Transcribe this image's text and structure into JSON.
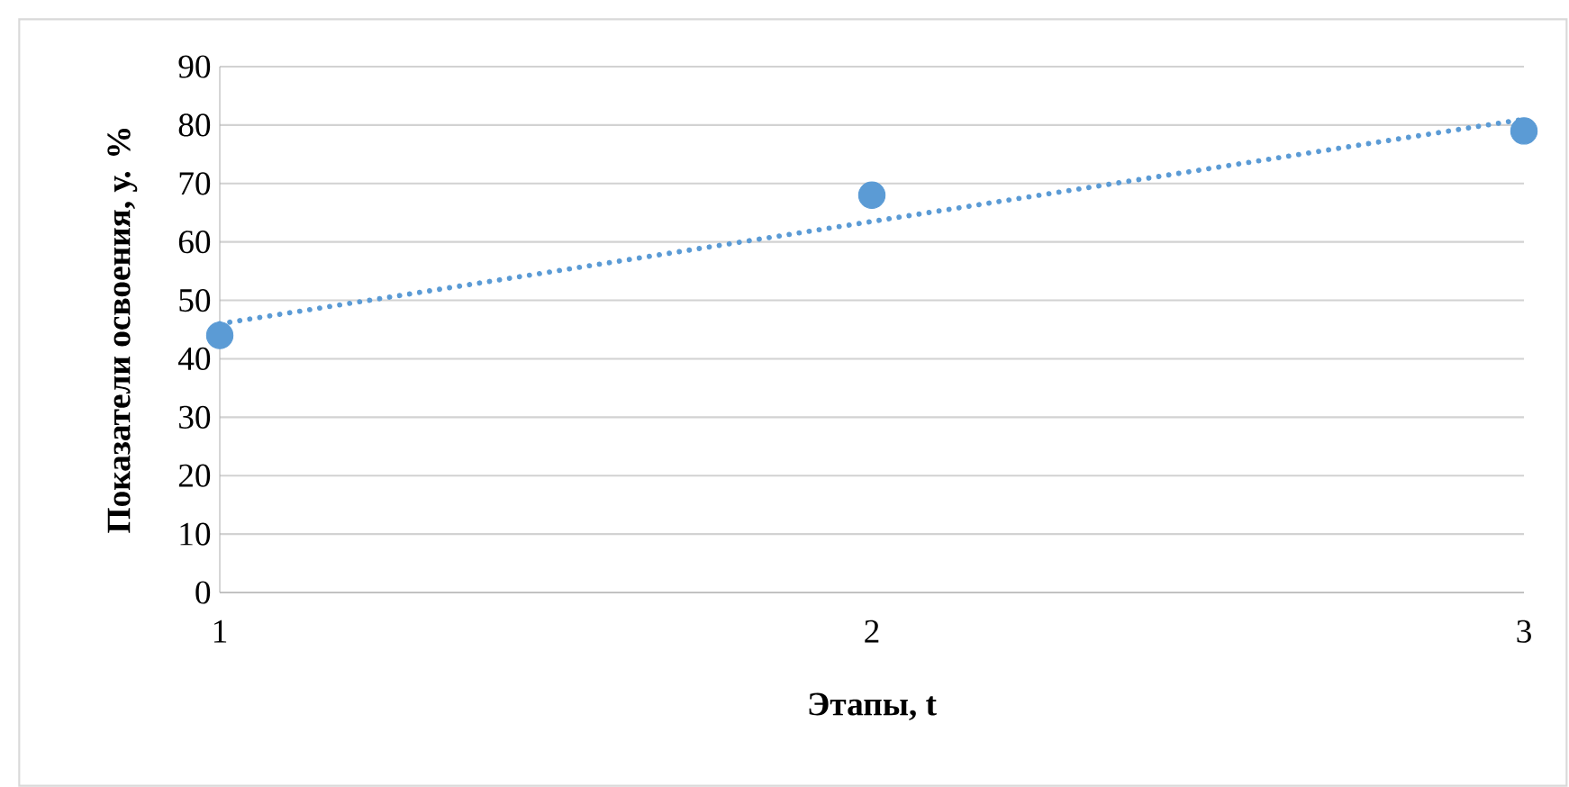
{
  "chart_data": {
    "type": "scatter",
    "xlabel": "Этапы, t",
    "ylabel": "Показатели освоения, у. %",
    "x": [
      1,
      2,
      3
    ],
    "xlim": [
      1,
      3
    ],
    "xticks": [
      1,
      2,
      3
    ],
    "ylim": [
      0,
      90
    ],
    "yticks": [
      0,
      10,
      20,
      30,
      40,
      50,
      60,
      70,
      80,
      90
    ],
    "grid": "y",
    "series": [
      {
        "color": "#5b9bd5",
        "values": [
          44,
          68,
          79
        ],
        "marker": "circle"
      },
      {
        "type": "line",
        "color": "#5b9bd5",
        "x": [
          1,
          3
        ],
        "values": [
          46,
          81
        ],
        "line_style": "dotted",
        "marker": "none"
      }
    ]
  }
}
